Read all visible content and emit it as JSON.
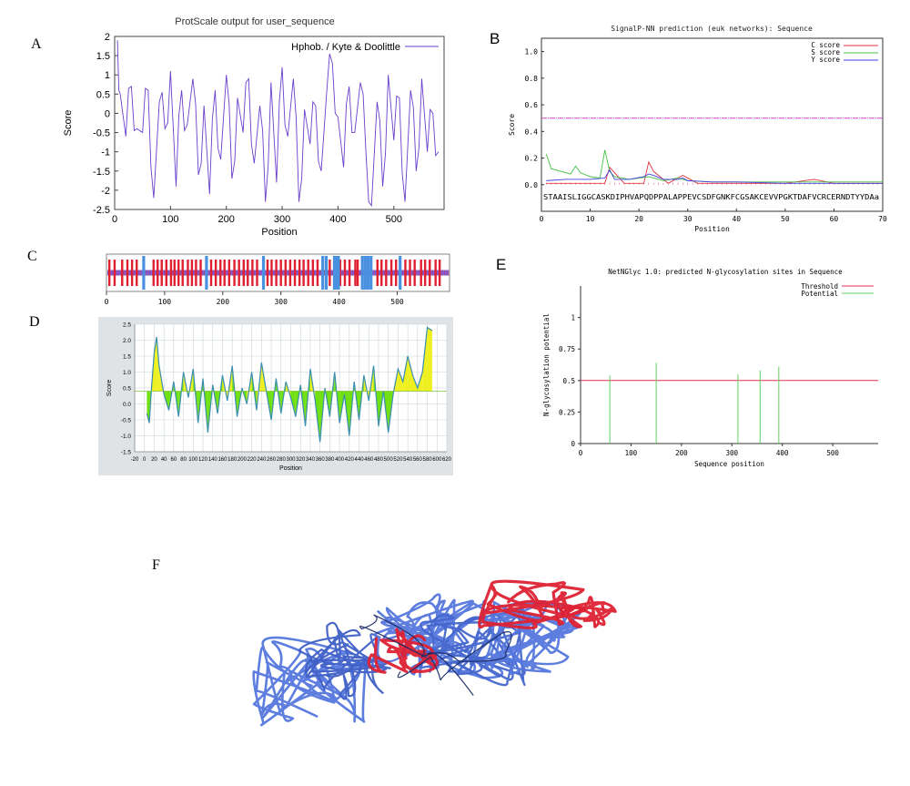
{
  "panels": {
    "A": "A",
    "B": "B",
    "C": "C",
    "D": "D",
    "E": "E",
    "F": "F"
  },
  "colors": {
    "hydro_line": "#6a3fcc",
    "c_score": "#e03040",
    "s_score": "#40c040",
    "y_score": "#4040e0",
    "threshold": "#e03050",
    "potential": "#60d060",
    "d_fill_yellow": "#eef020",
    "d_fill_green": "#70e010",
    "d_line": "#3a8fb0",
    "ribbon_blue": "#5577dd",
    "ribbon_red": "#dd2233"
  },
  "chart_data": [
    {
      "panel": "A",
      "type": "line",
      "title": "ProtScale output for user_sequence",
      "xlabel": "Position",
      "ylabel": "Score",
      "legend": [
        "Hphob. / Kyte & Doolittle"
      ],
      "legend_position": "top-right",
      "xlim": [
        0,
        590
      ],
      "ylim": [
        -2.5,
        2
      ],
      "xticks": [
        "0",
        "100",
        "200",
        "300",
        "400",
        "500"
      ],
      "yticks": [
        "2",
        "1.5",
        "1",
        "0.5",
        "0",
        "-0.5",
        "-1",
        "-1.5",
        "-2",
        "-2.5"
      ],
      "series": [
        {
          "name": "Hphob. / Kyte & Doolittle",
          "x": [
            5,
            10,
            20,
            30,
            40,
            50,
            60,
            70,
            80,
            90,
            100,
            110,
            120,
            130,
            140,
            150,
            160,
            170,
            180,
            190,
            200,
            210,
            220,
            230,
            240,
            250,
            260,
            270,
            280,
            290,
            300,
            310,
            320,
            330,
            340,
            350,
            360,
            370,
            380,
            390,
            400,
            410,
            420,
            430,
            440,
            450,
            460,
            470,
            480,
            490,
            500,
            510,
            520,
            530,
            540,
            550,
            560,
            570,
            580
          ],
          "y": [
            1.9,
            0.5,
            -0.6,
            0.7,
            -0.4,
            -0.5,
            0.6,
            -2.2,
            0.3,
            -0.4,
            1.1,
            -1.9,
            0.6,
            -0.3,
            0.9,
            -1.6,
            0.2,
            -2.1,
            0.6,
            -1.2,
            1.0,
            -1.7,
            0.4,
            -0.5,
            0.9,
            -1.3,
            0.2,
            -2.3,
            0.8,
            -1.8,
            1.2,
            -0.6,
            0.9,
            -2.3,
            0.1,
            -0.8,
            0.2,
            -1.5,
            0.6,
            1.3,
            -0.1,
            -1.4,
            0.7,
            -0.5,
            0.8,
            -1.0,
            -2.4,
            0.3,
            -1.9,
            1.0,
            -0.7,
            0.4,
            -2.3,
            0.6,
            -1.5,
            0.9,
            -1.0,
            0.0,
            -1.0
          ]
        }
      ]
    },
    {
      "panel": "B",
      "type": "line",
      "title": "SignalP-NN prediction (euk networks): Sequence",
      "xlabel": "Position",
      "ylabel": "Score",
      "legend": [
        "C score",
        "S score",
        "Y score"
      ],
      "legend_position": "top-right",
      "xlim": [
        0,
        70
      ],
      "ylim": [
        -0.2,
        1.1
      ],
      "xticks": [
        "0",
        "10",
        "20",
        "30",
        "40",
        "50",
        "60",
        "70"
      ],
      "yticks": [
        "1.0",
        "0.8",
        "0.6",
        "0.4",
        "0.2",
        "0.0"
      ],
      "threshold": 0.5,
      "sequence": "STAAISLIGGCASKDIPHVAPQDPPALAPPEVCSDFGNKFCGSAKCEVVPGKTDAFVCRCERNDTYYDAa",
      "series": [
        {
          "name": "C score",
          "x": [
            1,
            4,
            7,
            10,
            13,
            14,
            17,
            20,
            21,
            22,
            23,
            26,
            29,
            32,
            40,
            50,
            56,
            60,
            70
          ],
          "y": [
            0.01,
            0.01,
            0.01,
            0.01,
            0.01,
            0.13,
            0.01,
            0.01,
            0.01,
            0.17,
            0.1,
            0.01,
            0.07,
            0.01,
            0.01,
            0.01,
            0.04,
            0.01,
            0.01
          ]
        },
        {
          "name": "S score",
          "x": [
            1,
            2,
            4,
            6,
            7,
            8,
            10,
            12,
            13,
            14,
            15,
            18,
            22,
            23,
            25,
            28,
            30,
            35,
            40,
            45,
            50,
            55,
            60,
            65,
            70
          ],
          "y": [
            0.23,
            0.12,
            0.1,
            0.08,
            0.14,
            0.09,
            0.06,
            0.05,
            0.26,
            0.1,
            0.06,
            0.04,
            0.06,
            0.05,
            0.03,
            0.05,
            0.03,
            0.02,
            0.02,
            0.02,
            0.02,
            0.02,
            0.02,
            0.02,
            0.02
          ]
        },
        {
          "name": "Y score",
          "x": [
            1,
            5,
            10,
            13,
            14,
            15,
            18,
            21,
            22,
            23,
            25,
            28,
            29,
            30,
            35,
            40,
            50,
            60,
            70
          ],
          "y": [
            0.03,
            0.04,
            0.04,
            0.05,
            0.11,
            0.04,
            0.04,
            0.06,
            0.08,
            0.07,
            0.04,
            0.04,
            0.05,
            0.03,
            0.02,
            0.02,
            0.01,
            0.01,
            0.01
          ]
        }
      ]
    },
    {
      "panel": "C",
      "type": "bar",
      "xticks": [
        "0",
        "100",
        "200",
        "300",
        "400",
        "500"
      ],
      "xlim": [
        0,
        590
      ],
      "red_positions": [
        5,
        14,
        27,
        36,
        44,
        52,
        81,
        88,
        95,
        103,
        111,
        117,
        124,
        131,
        140,
        147,
        154,
        162,
        180,
        188,
        196,
        203,
        211,
        220,
        228,
        236,
        243,
        251,
        259,
        277,
        284,
        292,
        300,
        308,
        316,
        324,
        332,
        339,
        347,
        355,
        363,
        384,
        402,
        410,
        418,
        428,
        432,
        466,
        473,
        481,
        490,
        498,
        514,
        522,
        530,
        541,
        548,
        556,
        566,
        573
      ],
      "blue_positions": [
        64,
        172,
        270,
        372,
        378,
        392,
        396,
        399,
        440,
        445,
        450,
        455,
        505
      ]
    },
    {
      "panel": "D",
      "type": "area",
      "xlabel": "Position",
      "ylabel": "Score",
      "threshold": 0.4,
      "xlim": [
        -20,
        620
      ],
      "ylim": [
        -1.5,
        2.5
      ],
      "xticks": [
        "-20",
        "0",
        "20",
        "40",
        "60",
        "80",
        "100",
        "120",
        "140",
        "160",
        "180",
        "200",
        "220",
        "240",
        "260",
        "280",
        "300",
        "320",
        "340",
        "360",
        "380",
        "400",
        "420",
        "440",
        "460",
        "480",
        "500",
        "520",
        "540",
        "560",
        "580",
        "600",
        "620"
      ],
      "yticks": [
        "2.5",
        "2.0",
        "1.5",
        "1.0",
        "0.5",
        "0.0",
        "-0.5",
        "-1.0",
        "-1.5"
      ],
      "x": [
        5,
        10,
        15,
        20,
        25,
        30,
        40,
        50,
        60,
        70,
        80,
        90,
        100,
        110,
        120,
        130,
        140,
        150,
        160,
        170,
        180,
        190,
        200,
        210,
        220,
        230,
        240,
        250,
        260,
        270,
        280,
        290,
        300,
        310,
        320,
        330,
        340,
        350,
        360,
        370,
        380,
        390,
        400,
        410,
        420,
        430,
        440,
        450,
        460,
        470,
        480,
        490,
        500,
        510,
        520,
        530,
        540,
        550,
        560,
        570,
        580,
        590
      ],
      "y": [
        -0.3,
        -0.6,
        0.6,
        1.6,
        2.1,
        1.2,
        0.3,
        -0.2,
        0.7,
        -0.4,
        1.0,
        0.2,
        1.1,
        -0.6,
        0.8,
        -0.9,
        0.6,
        -0.3,
        0.9,
        0.1,
        1.2,
        -0.4,
        0.5,
        0.0,
        1.0,
        -0.2,
        1.3,
        0.4,
        -0.5,
        0.8,
        -0.3,
        0.7,
        0.2,
        -0.4,
        0.6,
        -0.7,
        1.1,
        0.1,
        -1.2,
        0.5,
        -0.4,
        1.0,
        -0.6,
        0.3,
        -1.0,
        0.7,
        -0.5,
        0.9,
        0.1,
        1.2,
        -0.7,
        0.4,
        -0.9,
        0.3,
        1.1,
        0.7,
        1.5,
        0.9,
        0.5,
        1.0,
        2.4,
        2.3
      ]
    },
    {
      "panel": "E",
      "type": "bar",
      "title": "NetNGlyc 1.0: predicted N-glycosylation sites in Sequence",
      "xlabel": "Sequence position",
      "ylabel": "N-glycosylation potential",
      "legend": [
        "Threshold",
        "Potential"
      ],
      "legend_position": "top-right",
      "threshold": 0.5,
      "xlim": [
        0,
        590
      ],
      "ylim": [
        0,
        1.25
      ],
      "xticks": [
        "0",
        "100",
        "200",
        "300",
        "400",
        "500"
      ],
      "yticks": [
        "1",
        "0.75",
        "0.5",
        "0.25",
        "0"
      ],
      "x": [
        58,
        150,
        312,
        356,
        393
      ],
      "values": [
        0.54,
        0.64,
        0.55,
        0.58,
        0.61
      ]
    }
  ]
}
